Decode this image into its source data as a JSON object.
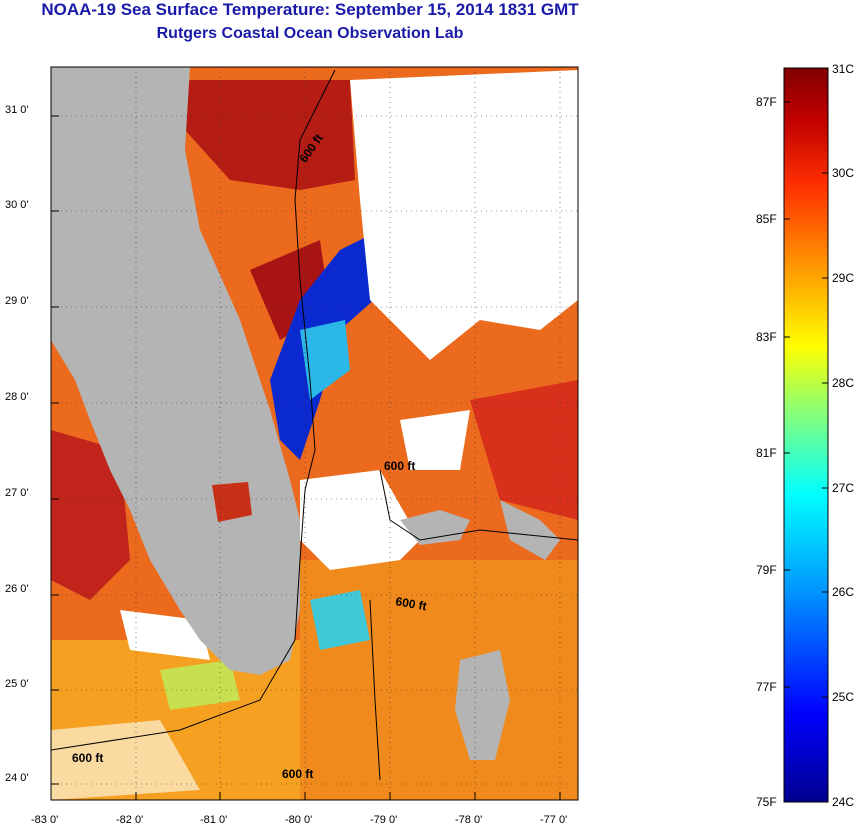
{
  "title": "NOAA-19 Sea Surface Temperature:  September 15, 2014 1831 GMT",
  "subtitle": "Rutgers Coastal Ocean Observation Lab",
  "map": {
    "lat_ticks": [
      "31 0'",
      "30 0'",
      "29 0'",
      "28 0'",
      "27 0'",
      "26 0'",
      "25 0'",
      "24 0'"
    ],
    "lon_ticks": [
      "-83 0'",
      "-82 0'",
      "-81 0'",
      "-80 0'",
      "-79 0'",
      "-78 0'",
      "-77 0'"
    ],
    "contour_labels": [
      "600 ft",
      "600 ft",
      "600 ft",
      "600 ft",
      "600 ft"
    ],
    "colors": {
      "land": "#b4b4b4",
      "cloud": "#ffffff",
      "warm": "#e8541c",
      "hot": "#b01818",
      "cool": "#0a2ad0",
      "cyan": "#2bc8e8",
      "yellow": "#f0d82a"
    }
  },
  "colorbar": {
    "celsius": [
      "31C",
      "30C",
      "29C",
      "28C",
      "27C",
      "26C",
      "25C",
      "24C"
    ],
    "fahrenheit": [
      "87F",
      "85F",
      "83F",
      "81F",
      "79F",
      "77F",
      "75F"
    ]
  }
}
